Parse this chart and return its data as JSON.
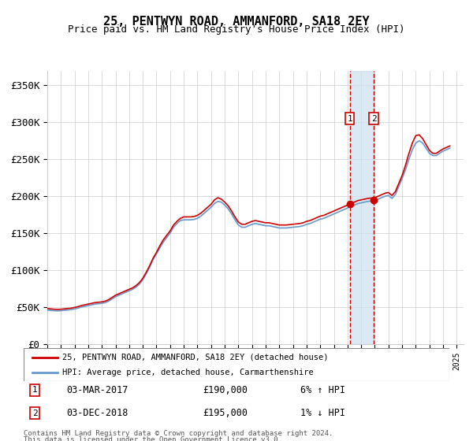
{
  "title": "25, PENTWYN ROAD, AMMANFORD, SA18 2EY",
  "subtitle": "Price paid vs. HM Land Registry's House Price Index (HPI)",
  "ylabel_ticks": [
    "£0",
    "£50K",
    "£100K",
    "£150K",
    "£200K",
    "£250K",
    "£300K",
    "£350K"
  ],
  "ytick_vals": [
    0,
    50000,
    100000,
    150000,
    200000,
    250000,
    300000,
    350000
  ],
  "ylim": [
    0,
    370000
  ],
  "legend_line1": "25, PENTWYN ROAD, AMMANFORD, SA18 2EY (detached house)",
  "legend_line2": "HPI: Average price, detached house, Carmarthenshire",
  "marker1_date": 2017.17,
  "marker2_date": 2018.92,
  "marker1_price": 190000,
  "marker2_price": 195000,
  "marker1_label": "1",
  "marker2_label": "2",
  "annotation1": "1    03-MAR-2017         £190,000         6% ↑ HPI",
  "annotation2": "2    03-DEC-2018         £195,000         1% ↓ HPI",
  "footer1": "Contains HM Land Registry data © Crown copyright and database right 2024.",
  "footer2": "This data is licensed under the Open Government Licence v3.0.",
  "line_color_red": "#cc0000",
  "line_color_blue": "#6699cc",
  "shade_color": "#cce0f0",
  "vline_color": "#cc0000",
  "background_color": "#ffffff",
  "grid_color": "#cccccc",
  "hpi_data": {
    "dates": [
      1995.0,
      1995.25,
      1995.5,
      1995.75,
      1996.0,
      1996.25,
      1996.5,
      1996.75,
      1997.0,
      1997.25,
      1997.5,
      1997.75,
      1998.0,
      1998.25,
      1998.5,
      1998.75,
      1999.0,
      1999.25,
      1999.5,
      1999.75,
      2000.0,
      2000.25,
      2000.5,
      2000.75,
      2001.0,
      2001.25,
      2001.5,
      2001.75,
      2002.0,
      2002.25,
      2002.5,
      2002.75,
      2003.0,
      2003.25,
      2003.5,
      2003.75,
      2004.0,
      2004.25,
      2004.5,
      2004.75,
      2005.0,
      2005.25,
      2005.5,
      2005.75,
      2006.0,
      2006.25,
      2006.5,
      2006.75,
      2007.0,
      2007.25,
      2007.5,
      2007.75,
      2008.0,
      2008.25,
      2008.5,
      2008.75,
      2009.0,
      2009.25,
      2009.5,
      2009.75,
      2010.0,
      2010.25,
      2010.5,
      2010.75,
      2011.0,
      2011.25,
      2011.5,
      2011.75,
      2012.0,
      2012.25,
      2012.5,
      2012.75,
      2013.0,
      2013.25,
      2013.5,
      2013.75,
      2014.0,
      2014.25,
      2014.5,
      2014.75,
      2015.0,
      2015.25,
      2015.5,
      2015.75,
      2016.0,
      2016.25,
      2016.5,
      2016.75,
      2017.0,
      2017.25,
      2017.5,
      2017.75,
      2018.0,
      2018.25,
      2018.5,
      2018.75,
      2019.0,
      2019.25,
      2019.5,
      2019.75,
      2020.0,
      2020.25,
      2020.5,
      2020.75,
      2021.0,
      2021.25,
      2021.5,
      2021.75,
      2022.0,
      2022.25,
      2022.5,
      2022.75,
      2023.0,
      2023.25,
      2023.5,
      2023.75,
      2024.0,
      2024.25,
      2024.5
    ],
    "values": [
      46000,
      45500,
      45000,
      44800,
      45000,
      45500,
      46000,
      46500,
      47500,
      48500,
      50000,
      51000,
      52000,
      53000,
      54000,
      54500,
      55000,
      56000,
      58000,
      61000,
      64000,
      66000,
      68000,
      70000,
      72000,
      74000,
      77000,
      81000,
      87000,
      95000,
      104000,
      114000,
      122000,
      130000,
      138000,
      144000,
      150000,
      158000,
      163000,
      167000,
      168000,
      168000,
      168000,
      168500,
      170000,
      173000,
      177000,
      181000,
      185000,
      190000,
      193000,
      192000,
      188000,
      183000,
      176000,
      168000,
      161000,
      158000,
      158000,
      160000,
      162000,
      163000,
      162000,
      161000,
      160000,
      160000,
      159000,
      158000,
      157000,
      157000,
      157000,
      157500,
      158000,
      158500,
      159000,
      160000,
      162000,
      163000,
      165000,
      167000,
      169000,
      170000,
      172000,
      174000,
      176000,
      178000,
      180000,
      182000,
      184000,
      186000,
      188000,
      190000,
      191000,
      192000,
      193000,
      193500,
      194000,
      196000,
      198000,
      200000,
      201000,
      197000,
      202000,
      213000,
      224000,
      236000,
      250000,
      263000,
      272000,
      275000,
      272000,
      265000,
      258000,
      255000,
      255000,
      258000,
      261000,
      263000,
      265000
    ]
  },
  "property_data": {
    "dates": [
      1995.0,
      1995.25,
      1995.5,
      1995.75,
      1996.0,
      1996.25,
      1996.5,
      1996.75,
      1997.0,
      1997.25,
      1997.5,
      1997.75,
      1998.0,
      1998.25,
      1998.5,
      1998.75,
      1999.0,
      1999.25,
      1999.5,
      1999.75,
      2000.0,
      2000.25,
      2000.5,
      2000.75,
      2001.0,
      2001.25,
      2001.5,
      2001.75,
      2002.0,
      2002.25,
      2002.5,
      2002.75,
      2003.0,
      2003.25,
      2003.5,
      2003.75,
      2004.0,
      2004.25,
      2004.5,
      2004.75,
      2005.0,
      2005.25,
      2005.5,
      2005.75,
      2006.0,
      2006.25,
      2006.5,
      2006.75,
      2007.0,
      2007.25,
      2007.5,
      2007.75,
      2008.0,
      2008.25,
      2008.5,
      2008.75,
      2009.0,
      2009.25,
      2009.5,
      2009.75,
      2010.0,
      2010.25,
      2010.5,
      2010.75,
      2011.0,
      2011.25,
      2011.5,
      2011.75,
      2012.0,
      2012.25,
      2012.5,
      2012.75,
      2013.0,
      2013.25,
      2013.5,
      2013.75,
      2014.0,
      2014.25,
      2014.5,
      2014.75,
      2015.0,
      2015.25,
      2015.5,
      2015.75,
      2016.0,
      2016.25,
      2016.5,
      2016.75,
      2017.0,
      2017.25,
      2017.5,
      2017.75,
      2018.0,
      2018.25,
      2018.5,
      2018.75,
      2019.0,
      2019.25,
      2019.5,
      2019.75,
      2020.0,
      2020.25,
      2020.5,
      2020.75,
      2021.0,
      2021.25,
      2021.5,
      2021.75,
      2022.0,
      2022.25,
      2022.5,
      2022.75,
      2023.0,
      2023.25,
      2023.5,
      2023.75,
      2024.0,
      2024.25,
      2024.5
    ],
    "values": [
      48000,
      47500,
      47000,
      46800,
      47000,
      47500,
      48000,
      48500,
      49500,
      50500,
      52000,
      53000,
      54000,
      55000,
      56000,
      56500,
      57000,
      58000,
      60000,
      63000,
      66000,
      68000,
      70000,
      72000,
      74000,
      76000,
      79000,
      83000,
      89000,
      97000,
      106000,
      116000,
      124000,
      133000,
      141000,
      147000,
      153000,
      161000,
      166000,
      170000,
      172000,
      172000,
      172000,
      172500,
      174000,
      177000,
      181000,
      185000,
      189000,
      195000,
      198000,
      196000,
      192000,
      187000,
      180000,
      172000,
      165000,
      162000,
      162000,
      164000,
      166000,
      167000,
      166000,
      165000,
      164000,
      164000,
      163000,
      162000,
      161000,
      161000,
      161000,
      161500,
      162000,
      162500,
      163000,
      164000,
      166000,
      167000,
      169000,
      171000,
      173000,
      174000,
      176000,
      178000,
      180000,
      182000,
      184000,
      186000,
      188000,
      190000,
      192000,
      194000,
      195000,
      196000,
      197000,
      197500,
      198000,
      200000,
      202000,
      204000,
      205000,
      201000,
      206000,
      217000,
      228000,
      242000,
      258000,
      272000,
      282000,
      283000,
      278000,
      270000,
      262000,
      258000,
      258000,
      261000,
      264000,
      266000,
      268000
    ]
  }
}
